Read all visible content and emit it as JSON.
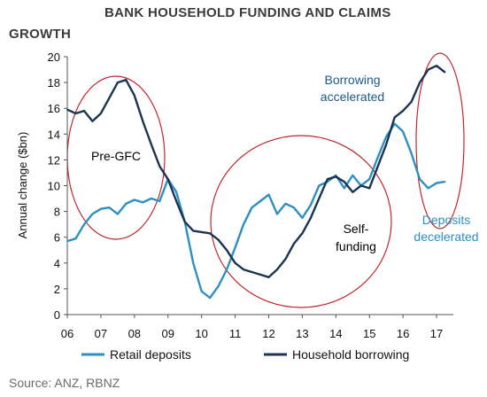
{
  "title_line1": "BANK HOUSEHOLD FUNDING AND CLAIMS",
  "title_line2": "GROWTH",
  "source": "Source: ANZ, RBNZ",
  "chart_data": {
    "type": "line",
    "title": "BANK HOUSEHOLD FUNDING AND CLAIMS GROWTH",
    "ylabel": "Annual change ($bn)",
    "xlabel": "",
    "ylim": [
      0,
      20
    ],
    "xlim": [
      2006,
      2017.5
    ],
    "yticks": [
      "0",
      "2",
      "4",
      "6",
      "8",
      "10",
      "12",
      "14",
      "16",
      "18",
      "20"
    ],
    "xticks": [
      "06",
      "07",
      "08",
      "09",
      "10",
      "11",
      "12",
      "13",
      "14",
      "15",
      "16",
      "17"
    ],
    "grid": false,
    "legend_position": "bottom",
    "series": [
      {
        "name": "Retail deposits",
        "color": "#2e8fc4",
        "points": [
          [
            2006.0,
            5.7
          ],
          [
            2006.25,
            5.9
          ],
          [
            2006.5,
            7.0
          ],
          [
            2006.75,
            7.8
          ],
          [
            2007.0,
            8.2
          ],
          [
            2007.25,
            8.3
          ],
          [
            2007.5,
            7.8
          ],
          [
            2007.75,
            8.6
          ],
          [
            2008.0,
            8.9
          ],
          [
            2008.25,
            8.7
          ],
          [
            2008.5,
            9.0
          ],
          [
            2008.75,
            8.8
          ],
          [
            2009.0,
            10.5
          ],
          [
            2009.25,
            9.5
          ],
          [
            2009.5,
            7.2
          ],
          [
            2009.75,
            4.0
          ],
          [
            2010.0,
            1.8
          ],
          [
            2010.25,
            1.3
          ],
          [
            2010.5,
            2.2
          ],
          [
            2010.75,
            3.5
          ],
          [
            2011.0,
            5.2
          ],
          [
            2011.25,
            7.0
          ],
          [
            2011.5,
            8.3
          ],
          [
            2011.75,
            8.8
          ],
          [
            2012.0,
            9.3
          ],
          [
            2012.25,
            7.8
          ],
          [
            2012.5,
            8.6
          ],
          [
            2012.75,
            8.3
          ],
          [
            2013.0,
            7.5
          ],
          [
            2013.25,
            8.5
          ],
          [
            2013.5,
            10.0
          ],
          [
            2013.75,
            10.3
          ],
          [
            2014.0,
            10.8
          ],
          [
            2014.25,
            9.8
          ],
          [
            2014.5,
            10.8
          ],
          [
            2014.75,
            10.0
          ],
          [
            2015.0,
            10.5
          ],
          [
            2015.25,
            12.2
          ],
          [
            2015.5,
            13.8
          ],
          [
            2015.75,
            14.8
          ],
          [
            2016.0,
            14.2
          ],
          [
            2016.25,
            12.5
          ],
          [
            2016.5,
            10.5
          ],
          [
            2016.75,
            9.8
          ],
          [
            2017.0,
            10.2
          ],
          [
            2017.25,
            10.3
          ]
        ]
      },
      {
        "name": "Household borrowing",
        "color": "#1b3551",
        "points": [
          [
            2006.0,
            15.9
          ],
          [
            2006.25,
            15.6
          ],
          [
            2006.5,
            15.8
          ],
          [
            2006.75,
            15.0
          ],
          [
            2007.0,
            15.6
          ],
          [
            2007.25,
            16.8
          ],
          [
            2007.5,
            18.0
          ],
          [
            2007.75,
            18.2
          ],
          [
            2008.0,
            17.0
          ],
          [
            2008.25,
            15.0
          ],
          [
            2008.5,
            13.2
          ],
          [
            2008.75,
            11.5
          ],
          [
            2009.0,
            10.5
          ],
          [
            2009.25,
            8.8
          ],
          [
            2009.5,
            7.2
          ],
          [
            2009.75,
            6.5
          ],
          [
            2010.0,
            6.4
          ],
          [
            2010.25,
            6.3
          ],
          [
            2010.5,
            5.8
          ],
          [
            2010.75,
            5.0
          ],
          [
            2011.0,
            4.0
          ],
          [
            2011.25,
            3.5
          ],
          [
            2011.5,
            3.3
          ],
          [
            2011.75,
            3.1
          ],
          [
            2012.0,
            2.9
          ],
          [
            2012.25,
            3.5
          ],
          [
            2012.5,
            4.3
          ],
          [
            2012.75,
            5.5
          ],
          [
            2013.0,
            6.3
          ],
          [
            2013.25,
            7.5
          ],
          [
            2013.5,
            9.0
          ],
          [
            2013.75,
            10.5
          ],
          [
            2014.0,
            10.7
          ],
          [
            2014.25,
            10.3
          ],
          [
            2014.5,
            9.5
          ],
          [
            2014.75,
            10.0
          ],
          [
            2015.0,
            9.8
          ],
          [
            2015.25,
            11.5
          ],
          [
            2015.5,
            13.2
          ],
          [
            2015.75,
            15.3
          ],
          [
            2016.0,
            15.8
          ],
          [
            2016.25,
            16.5
          ],
          [
            2016.5,
            18.0
          ],
          [
            2016.75,
            19.0
          ],
          [
            2017.0,
            19.3
          ],
          [
            2017.25,
            18.8
          ]
        ]
      }
    ],
    "annotations": [
      {
        "text_lines": [
          "Pre-GFC"
        ],
        "color": "#000000"
      },
      {
        "text_lines": [
          "Self-",
          "funding"
        ],
        "color": "#000000"
      },
      {
        "text_lines": [
          "Borrowing",
          "accelerated"
        ],
        "color": "#1b5a8a"
      },
      {
        "text_lines": [
          "Deposits",
          "decelerated"
        ],
        "color": "#2e8fc4"
      }
    ],
    "highlight_circle_color": "#c0262a"
  }
}
